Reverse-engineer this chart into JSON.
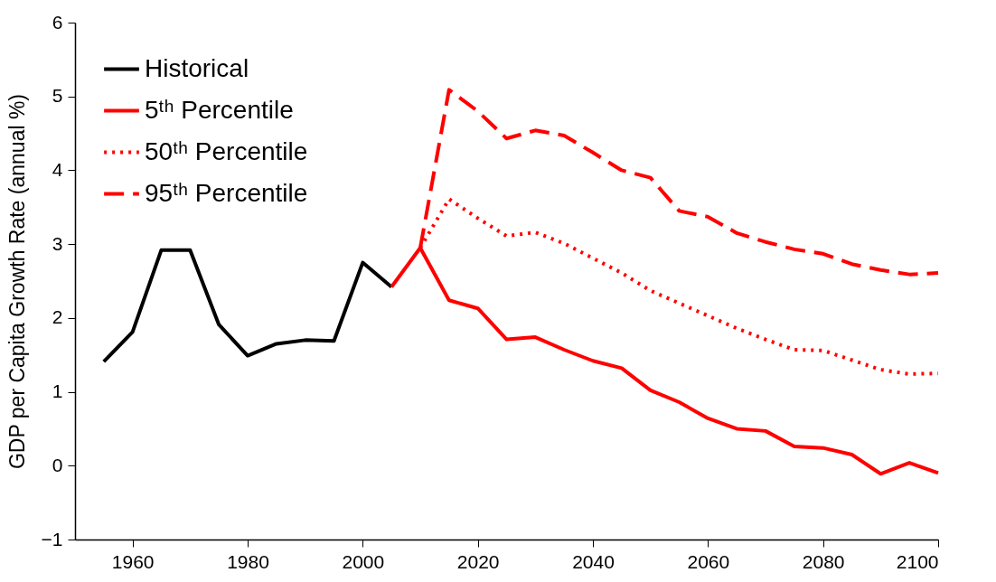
{
  "chart_data": {
    "type": "line",
    "ylabel": "GDP per Capita Growth Rate (annual %)",
    "xlim": [
      1950,
      2100
    ],
    "xticks": [
      1960,
      1980,
      2000,
      2020,
      2040,
      2060,
      2080,
      2100
    ],
    "ylim": [
      -1,
      6
    ],
    "yticks": [
      -1,
      0,
      1,
      2,
      3,
      4,
      5,
      6
    ],
    "grid": false,
    "legend": "top left",
    "marker": "none",
    "series": [
      {
        "name": "Historical",
        "color": "#000000",
        "line_style": "solid",
        "x": [
          1955,
          1960,
          1965,
          1970,
          1975,
          1980,
          1985,
          1990,
          1995,
          2000,
          2005
        ],
        "values": [
          1.41,
          1.81,
          2.92,
          2.92,
          1.91,
          1.49,
          1.65,
          1.7,
          1.69,
          2.75,
          2.42
        ]
      },
      {
        "name": "5ᵗʰ Percentile",
        "color": "#ff0000",
        "line_style": "solid",
        "x": [
          2005,
          2010,
          2015,
          2020,
          2025,
          2030,
          2035,
          2040,
          2045,
          2050,
          2055,
          2060,
          2065,
          2070,
          2075,
          2080,
          2085,
          2090,
          2095,
          2100
        ],
        "values": [
          2.42,
          2.95,
          2.24,
          2.13,
          1.71,
          1.74,
          1.57,
          1.42,
          1.32,
          1.02,
          0.86,
          0.64,
          0.5,
          0.47,
          0.26,
          0.24,
          0.15,
          -0.11,
          0.04,
          -0.1
        ]
      },
      {
        "name": "50ᵗʰ Percentile",
        "color": "#ff0000",
        "line_style": "dotted",
        "x": [
          2010,
          2015,
          2020,
          2025,
          2030,
          2035,
          2040,
          2045,
          2050,
          2055,
          2060,
          2065,
          2070,
          2075,
          2080,
          2085,
          2090,
          2095,
          2100
        ],
        "values": [
          2.95,
          3.61,
          3.35,
          3.11,
          3.16,
          3.01,
          2.81,
          2.61,
          2.37,
          2.2,
          2.03,
          1.86,
          1.71,
          1.57,
          1.56,
          1.43,
          1.3,
          1.24,
          1.25
        ]
      },
      {
        "name": "95ᵗʰ Percentile",
        "color": "#ff0000",
        "line_style": "dashed",
        "x": [
          2010,
          2015,
          2020,
          2025,
          2030,
          2035,
          2040,
          2045,
          2050,
          2055,
          2060,
          2065,
          2070,
          2075,
          2080,
          2085,
          2090,
          2095,
          2100
        ],
        "values": [
          2.95,
          5.09,
          4.8,
          4.43,
          4.54,
          4.47,
          4.24,
          4.0,
          3.9,
          3.45,
          3.37,
          3.15,
          3.03,
          2.93,
          2.87,
          2.73,
          2.65,
          2.59,
          2.61
        ]
      }
    ]
  }
}
